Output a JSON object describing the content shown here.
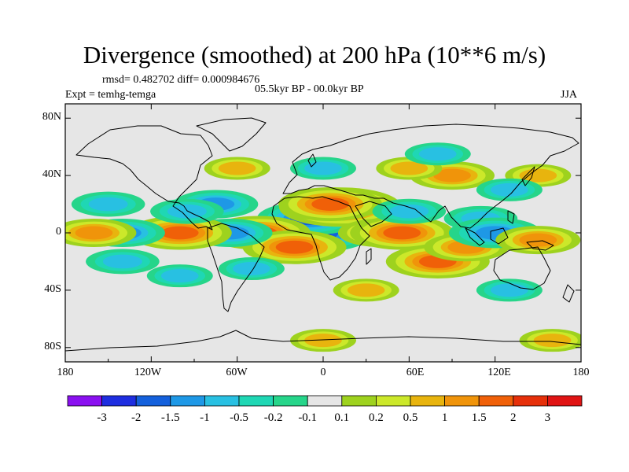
{
  "plot": {
    "title": "Divergence (smoothed) at 200 hPa (10**6 m/s)",
    "stats": "rmsd= 0.482702 diff= 0.000984676",
    "experiment": "Expt = temhg-temga",
    "period": "05.5kyr BP - 00.0kyr BP",
    "season": "JJA"
  },
  "axes": {
    "lon_ticks": [
      "180",
      "120W",
      "60W",
      "0",
      "60E",
      "120E",
      "180"
    ],
    "lat_ticks": [
      "80N",
      "40N",
      "0",
      "40S",
      "80S"
    ]
  },
  "chart_data": {
    "type": "heatmap",
    "variable": "Divergence (smoothed) at 200 hPa",
    "units": "10**6 m/s",
    "x_range": [
      -180,
      180
    ],
    "y_range": [
      -90,
      90
    ],
    "contour_levels": [
      -3,
      -2,
      -1.5,
      -1,
      -0.5,
      -0.2,
      -0.1,
      0.1,
      0.2,
      0.5,
      1,
      1.5,
      2,
      3
    ],
    "colorbar_labels": [
      "-3",
      "-2",
      "-1.5",
      "-1",
      "-0.5",
      "-0.2",
      "-0.1",
      "0.1",
      "0.2",
      "0.5",
      "1",
      "1.5",
      "2",
      "3"
    ],
    "colorbar_colors": [
      "#8a10f0",
      "#1e2ee0",
      "#1460dc",
      "#1e98e6",
      "#28c0e2",
      "#1fd7b4",
      "#26d58a",
      "#e6e6e6",
      "#9ed21e",
      "#cce82a",
      "#e8b40e",
      "#f0940a",
      "#f06008",
      "#e6300a",
      "#e01414"
    ],
    "features": [
      {
        "lon": -7,
        "lat": 0,
        "value": -2.5
      },
      {
        "lon": -10,
        "lat": 10,
        "value": -1.5
      },
      {
        "lon": 12,
        "lat": 18,
        "value": 2.5
      },
      {
        "lon": 5,
        "lat": 20,
        "value": 1.5
      },
      {
        "lon": -45,
        "lat": 0,
        "value": 1.5
      },
      {
        "lon": -20,
        "lat": -10,
        "value": 1.5
      },
      {
        "lon": -65,
        "lat": 0,
        "value": -1.0
      },
      {
        "lon": -100,
        "lat": 0,
        "value": 1.5
      },
      {
        "lon": -140,
        "lat": 0,
        "value": -1.0
      },
      {
        "lon": -160,
        "lat": 0,
        "value": 1.0
      },
      {
        "lon": -75,
        "lat": 20,
        "value": -1.0
      },
      {
        "lon": -95,
        "lat": 15,
        "value": -0.7
      },
      {
        "lon": -150,
        "lat": 20,
        "value": -0.7
      },
      {
        "lon": -140,
        "lat": -20,
        "value": -0.7
      },
      {
        "lon": -100,
        "lat": -30,
        "value": -0.5
      },
      {
        "lon": -50,
        "lat": -25,
        "value": -0.5
      },
      {
        "lon": 40,
        "lat": 0,
        "value": 1.0
      },
      {
        "lon": 55,
        "lat": 0,
        "value": 1.5
      },
      {
        "lon": 60,
        "lat": 15,
        "value": -0.7
      },
      {
        "lon": 80,
        "lat": -20,
        "value": 1.5
      },
      {
        "lon": 100,
        "lat": -10,
        "value": 1.0
      },
      {
        "lon": 110,
        "lat": 10,
        "value": -0.7
      },
      {
        "lon": 120,
        "lat": 0,
        "value": -1.2
      },
      {
        "lon": 150,
        "lat": -5,
        "value": 1.0
      },
      {
        "lon": 90,
        "lat": 40,
        "value": 1.0
      },
      {
        "lon": 60,
        "lat": 45,
        "value": 0.5
      },
      {
        "lon": 80,
        "lat": 55,
        "value": -0.5
      },
      {
        "lon": 150,
        "lat": 40,
        "value": 0.5
      },
      {
        "lon": 130,
        "lat": 30,
        "value": -0.5
      },
      {
        "lon": -60,
        "lat": 45,
        "value": 0.5
      },
      {
        "lon": 0,
        "lat": 45,
        "value": -0.5
      },
      {
        "lon": 130,
        "lat": -40,
        "value": -0.5
      },
      {
        "lon": 30,
        "lat": -40,
        "value": 0.5
      },
      {
        "lon": 0,
        "lat": -75,
        "value": 0.5
      },
      {
        "lon": 160,
        "lat": -75,
        "value": 0.5
      }
    ]
  }
}
